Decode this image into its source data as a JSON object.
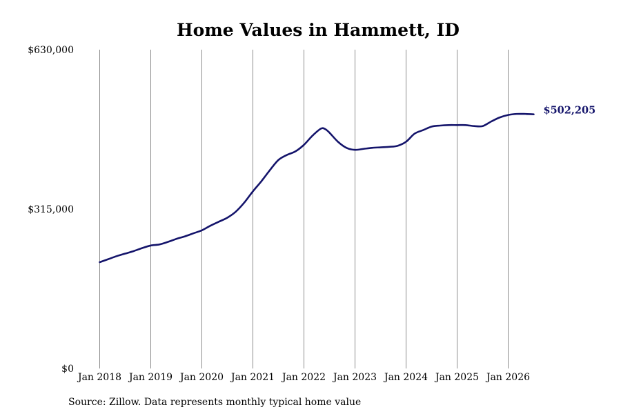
{
  "chart_data": {
    "type": "line",
    "title": "Home Values in Hammett, ID",
    "source": "Source: Zillow. Data represents monthly typical home value",
    "xlabel": "",
    "ylabel": "",
    "ylim": [
      0,
      630000
    ],
    "y_ticks": [
      {
        "value": 0,
        "label": "$0"
      },
      {
        "value": 315000,
        "label": "$315,000"
      },
      {
        "value": 630000,
        "label": "$630,000"
      }
    ],
    "x_ticks": [
      {
        "value": "2018-01",
        "label": "Jan 2018"
      },
      {
        "value": "2019-01",
        "label": "Jan 2019"
      },
      {
        "value": "2020-01",
        "label": "Jan 2020"
      },
      {
        "value": "2021-01",
        "label": "Jan 2021"
      },
      {
        "value": "2022-01",
        "label": "Jan 2022"
      },
      {
        "value": "2023-01",
        "label": "Jan 2023"
      },
      {
        "value": "2024-01",
        "label": "Jan 2024"
      },
      {
        "value": "2025-01",
        "label": "Jan 2025"
      },
      {
        "value": "2026-01",
        "label": "Jan 2026"
      }
    ],
    "grid": "vertical",
    "line_color": "#14146b",
    "end_label": "$502,205",
    "series": [
      {
        "x": [
          "2018-01",
          "2018-03",
          "2018-05",
          "2018-07",
          "2018-09",
          "2018-11",
          "2019-01",
          "2019-03",
          "2019-05",
          "2019-07",
          "2019-09",
          "2019-11",
          "2020-01",
          "2020-03",
          "2020-05",
          "2020-07",
          "2020-09",
          "2020-11",
          "2021-01",
          "2021-03",
          "2021-05",
          "2021-07",
          "2021-09",
          "2021-11",
          "2022-01",
          "2022-03",
          "2022-05",
          "2022-06",
          "2022-07",
          "2022-09",
          "2022-11",
          "2023-01",
          "2023-03",
          "2023-05",
          "2023-07",
          "2023-09",
          "2023-11",
          "2024-01",
          "2024-03",
          "2024-05",
          "2024-07",
          "2024-09",
          "2024-11",
          "2025-01",
          "2025-03",
          "2025-05",
          "2025-07",
          "2025-09",
          "2025-11",
          "2026-01",
          "2026-03",
          "2026-05",
          "2026-07"
        ],
        "y": [
          210000,
          216000,
          222000,
          227000,
          232000,
          238000,
          243000,
          245000,
          250000,
          256000,
          261000,
          267000,
          273000,
          282000,
          290000,
          298000,
          310000,
          328000,
          350000,
          370000,
          392000,
          412000,
          422000,
          429000,
          442000,
          460000,
          474000,
          473000,
          466000,
          448000,
          436000,
          432000,
          434000,
          436000,
          437000,
          438000,
          440000,
          448000,
          464000,
          471000,
          478000,
          480000,
          481000,
          481000,
          481000,
          479000,
          479000,
          488000,
          496000,
          501000,
          503000,
          503000,
          502205
        ]
      }
    ]
  }
}
